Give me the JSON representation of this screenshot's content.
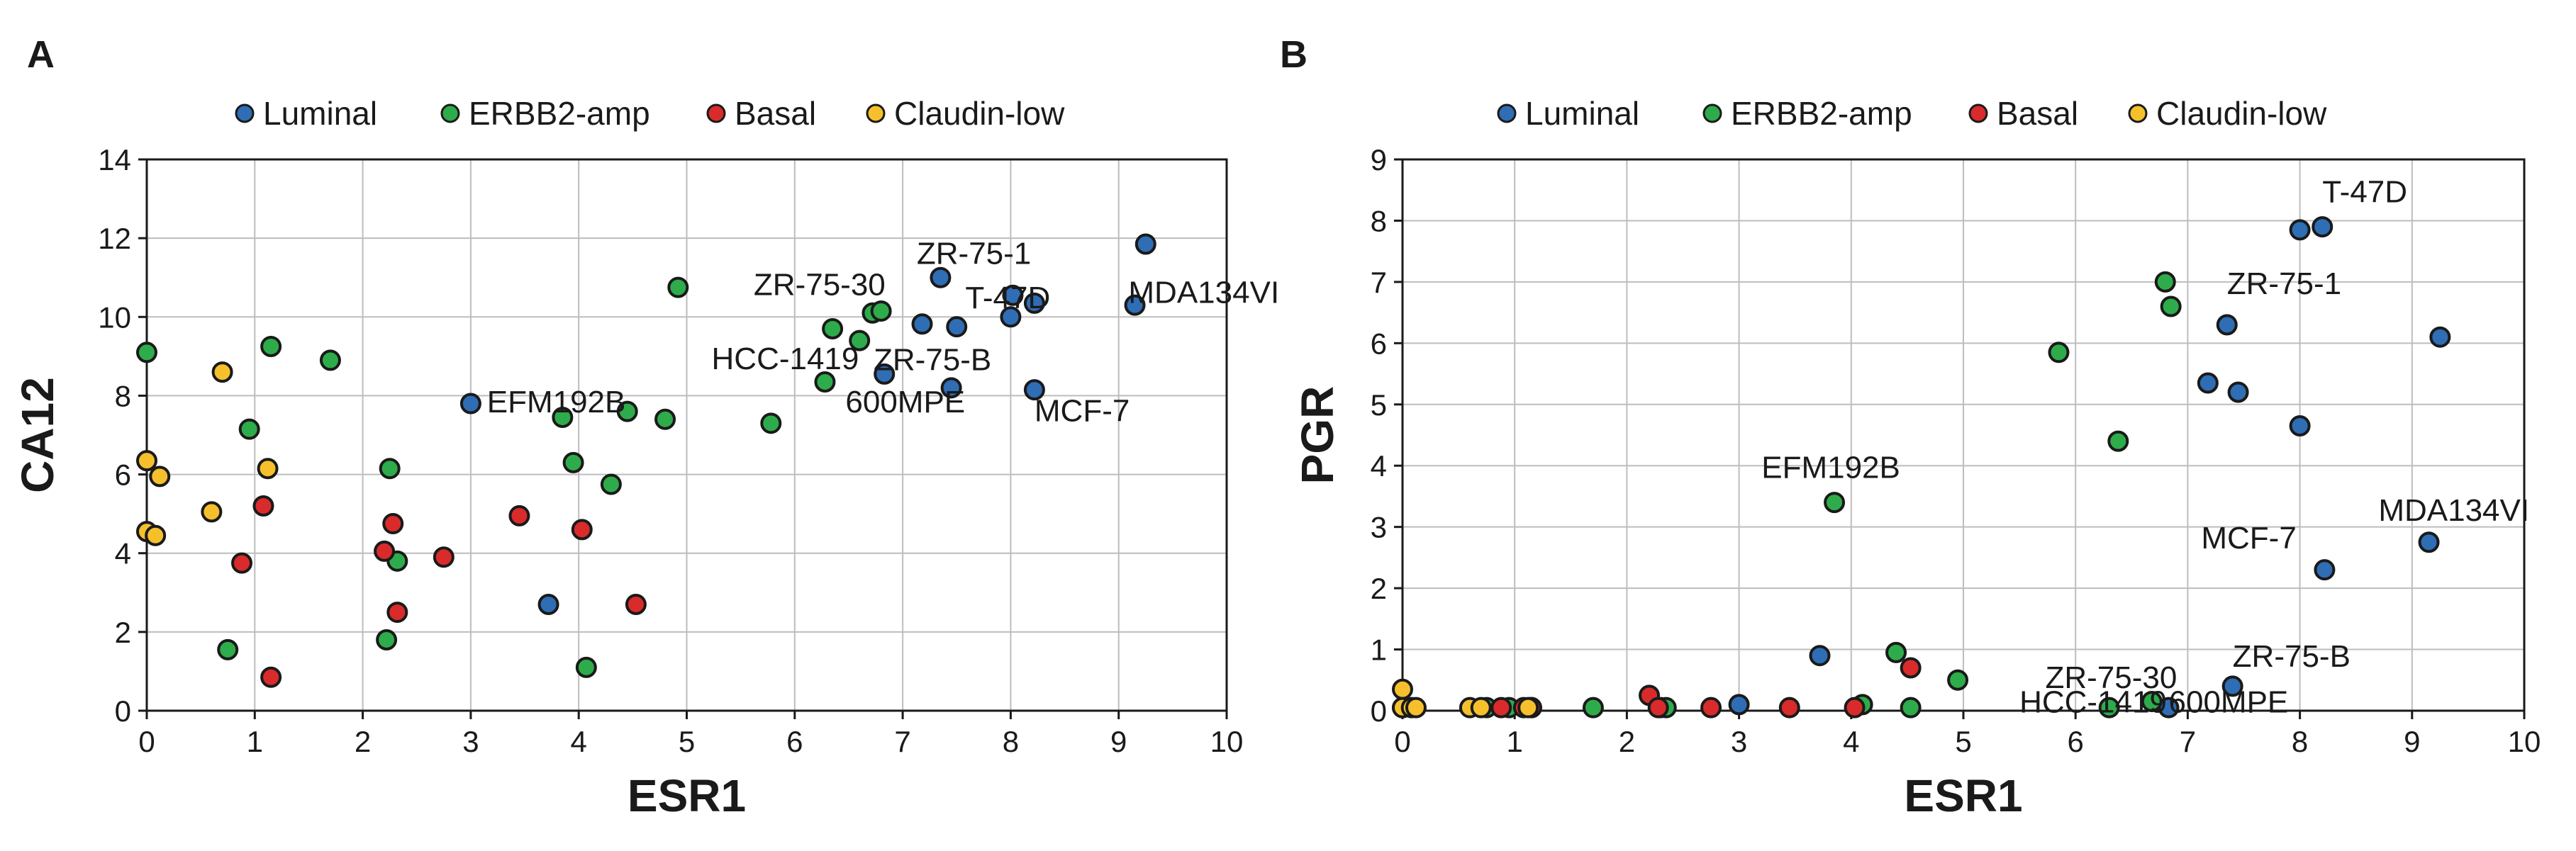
{
  "colors": {
    "Luminal": "#2f6db5",
    "ERBB2-amp": "#2eac4b",
    "Basal": "#d92b2b",
    "Claudin-low": "#f5c02c",
    "edge": "#1a1a1a",
    "grid": "#bdbdbd"
  },
  "chart_data": [
    {
      "panel_label": "A",
      "type": "scatter",
      "xlabel": "ESR1",
      "ylabel": "CA12",
      "xlim": [
        0,
        10
      ],
      "ylim": [
        0,
        14
      ],
      "xticks": [
        0,
        1,
        2,
        3,
        4,
        5,
        6,
        7,
        8,
        9,
        10
      ],
      "yticks": [
        0,
        2,
        4,
        6,
        8,
        10,
        12,
        14
      ],
      "grid": true,
      "legend": [
        "Luminal",
        "ERBB2-amp",
        "Basal",
        "Claudin-low"
      ],
      "series": [
        {
          "name": "Luminal",
          "points": [
            [
              3.0,
              7.8
            ],
            [
              3.72,
              2.7
            ],
            [
              6.83,
              8.55
            ],
            [
              7.18,
              9.82
            ],
            [
              7.35,
              11.0
            ],
            [
              7.45,
              8.2
            ],
            [
              7.5,
              9.75
            ],
            [
              8.0,
              10.0
            ],
            [
              8.02,
              10.55
            ],
            [
              8.22,
              10.35
            ],
            [
              8.22,
              8.15
            ],
            [
              9.15,
              10.3
            ],
            [
              9.25,
              11.85
            ]
          ]
        },
        {
          "name": "ERBB2-amp",
          "points": [
            [
              0.0,
              9.1
            ],
            [
              0.75,
              1.55
            ],
            [
              0.95,
              7.15
            ],
            [
              1.15,
              9.25
            ],
            [
              1.7,
              8.9
            ],
            [
              2.22,
              1.8
            ],
            [
              2.25,
              6.15
            ],
            [
              2.32,
              3.8
            ],
            [
              3.85,
              7.45
            ],
            [
              3.95,
              6.3
            ],
            [
              4.07,
              1.1
            ],
            [
              4.3,
              5.75
            ],
            [
              4.45,
              7.6
            ],
            [
              4.8,
              7.4
            ],
            [
              4.92,
              10.75
            ],
            [
              5.78,
              7.3
            ],
            [
              6.28,
              8.35
            ],
            [
              6.35,
              9.7
            ],
            [
              6.6,
              9.4
            ],
            [
              6.72,
              10.1
            ],
            [
              6.8,
              10.15
            ]
          ]
        },
        {
          "name": "Basal",
          "points": [
            [
              0.88,
              3.75
            ],
            [
              1.08,
              5.2
            ],
            [
              1.15,
              0.85
            ],
            [
              2.2,
              4.05
            ],
            [
              2.28,
              4.75
            ],
            [
              2.32,
              2.5
            ],
            [
              2.75,
              3.9
            ],
            [
              3.45,
              4.95
            ],
            [
              4.03,
              4.6
            ],
            [
              4.53,
              2.7
            ]
          ]
        },
        {
          "name": "Claudin-low",
          "points": [
            [
              0.0,
              6.35
            ],
            [
              0.0,
              4.55
            ],
            [
              0.08,
              4.45
            ],
            [
              0.12,
              5.95
            ],
            [
              0.6,
              5.05
            ],
            [
              0.7,
              8.6
            ],
            [
              1.12,
              6.15
            ]
          ]
        }
      ],
      "annotations": [
        {
          "text": "EFM192B",
          "x": 3.0,
          "y": 7.8
        },
        {
          "text": "ZR-75-1",
          "x": 7.35,
          "y": 11.0
        },
        {
          "text": "T-47D",
          "x": 8.0,
          "y": 10.0
        },
        {
          "text": "MDA134VI",
          "x": 9.15,
          "y": 10.3
        },
        {
          "text": "ZR-75-30",
          "x": 6.72,
          "y": 10.1
        },
        {
          "text": "HCC-1419",
          "x": 6.28,
          "y": 8.35
        },
        {
          "text": "ZR-75-B",
          "x": 6.83,
          "y": 8.55
        },
        {
          "text": "600MPE",
          "x": 7.45,
          "y": 8.2
        },
        {
          "text": "MCF-7",
          "x": 8.22,
          "y": 8.15
        }
      ]
    },
    {
      "panel_label": "B",
      "type": "scatter",
      "xlabel": "ESR1",
      "ylabel": "PGR",
      "xlim": [
        0,
        10
      ],
      "ylim": [
        0,
        9
      ],
      "xticks": [
        0,
        1,
        2,
        3,
        4,
        5,
        6,
        7,
        8,
        9,
        10
      ],
      "yticks": [
        0,
        1,
        2,
        3,
        4,
        5,
        6,
        7,
        8,
        9
      ],
      "grid": true,
      "legend": [
        "Luminal",
        "ERBB2-amp",
        "Basal",
        "Claudin-low"
      ],
      "series": [
        {
          "name": "Luminal",
          "points": [
            [
              3.0,
              0.1
            ],
            [
              3.72,
              0.9
            ],
            [
              6.83,
              0.05
            ],
            [
              7.18,
              5.35
            ],
            [
              7.35,
              6.3
            ],
            [
              7.45,
              5.2
            ],
            [
              7.4,
              0.4
            ],
            [
              8.0,
              4.65
            ],
            [
              8.0,
              7.85
            ],
            [
              8.2,
              7.9
            ],
            [
              8.22,
              2.3
            ],
            [
              9.15,
              2.75
            ],
            [
              9.25,
              6.1
            ]
          ]
        },
        {
          "name": "ERBB2-amp",
          "points": [
            [
              0.0,
              0.05
            ],
            [
              0.75,
              0.05
            ],
            [
              0.95,
              0.05
            ],
            [
              1.15,
              0.05
            ],
            [
              1.7,
              0.05
            ],
            [
              2.3,
              0.05
            ],
            [
              2.35,
              0.05
            ],
            [
              3.85,
              3.4
            ],
            [
              4.1,
              0.1
            ],
            [
              4.4,
              0.95
            ],
            [
              4.53,
              0.05
            ],
            [
              4.95,
              0.5
            ],
            [
              5.85,
              5.85
            ],
            [
              6.3,
              0.05
            ],
            [
              6.38,
              4.4
            ],
            [
              6.68,
              0.15
            ],
            [
              6.8,
              7.0
            ],
            [
              6.85,
              6.6
            ]
          ]
        },
        {
          "name": "Basal",
          "points": [
            [
              0.88,
              0.05
            ],
            [
              1.08,
              0.05
            ],
            [
              1.15,
              0.05
            ],
            [
              2.2,
              0.25
            ],
            [
              2.28,
              0.05
            ],
            [
              2.75,
              0.05
            ],
            [
              3.45,
              0.05
            ],
            [
              4.03,
              0.05
            ],
            [
              4.53,
              0.7
            ]
          ]
        },
        {
          "name": "Claudin-low",
          "points": [
            [
              0.0,
              0.35
            ],
            [
              0.0,
              0.05
            ],
            [
              0.08,
              0.05
            ],
            [
              0.12,
              0.05
            ],
            [
              0.6,
              0.05
            ],
            [
              0.7,
              0.05
            ],
            [
              1.12,
              0.05
            ]
          ]
        }
      ],
      "annotations": [
        {
          "text": "T-47D",
          "x": 8.2,
          "y": 7.9
        },
        {
          "text": "ZR-75-1",
          "x": 7.35,
          "y": 6.3
        },
        {
          "text": "EFM192B",
          "x": 3.85,
          "y": 3.4
        },
        {
          "text": "MDA134VI",
          "x": 9.15,
          "y": 2.75
        },
        {
          "text": "MCF-7",
          "x": 8.22,
          "y": 2.3
        },
        {
          "text": "ZR-75-30",
          "x": 6.68,
          "y": 0.15
        },
        {
          "text": "ZR-75-B",
          "x": 7.4,
          "y": 0.4
        },
        {
          "text": "HCC-1419",
          "x": 6.3,
          "y": 0.05
        },
        {
          "text": "600MPE",
          "x": 6.83,
          "y": 0.05
        }
      ]
    }
  ]
}
